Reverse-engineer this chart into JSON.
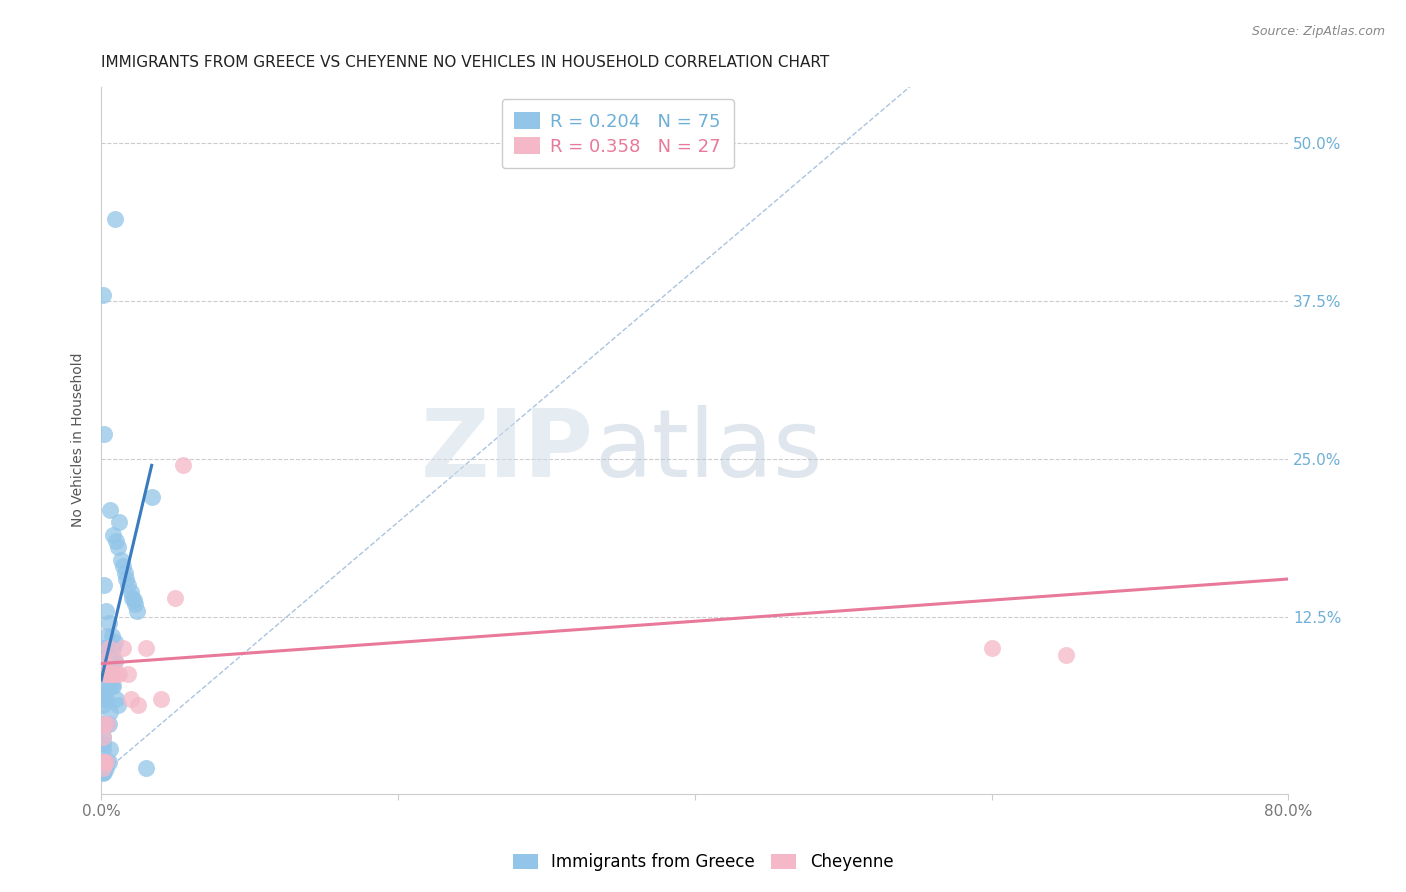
{
  "title": "IMMIGRANTS FROM GREECE VS CHEYENNE NO VEHICLES IN HOUSEHOLD CORRELATION CHART",
  "source": "Source: ZipAtlas.com",
  "ylabel": "No Vehicles in Household",
  "ytick_labels": [
    "50.0%",
    "37.5%",
    "25.0%",
    "12.5%"
  ],
  "ytick_values": [
    0.5,
    0.375,
    0.25,
    0.125
  ],
  "legend_blue_r": "0.204",
  "legend_blue_n": "75",
  "legend_pink_r": "0.358",
  "legend_pink_n": "27",
  "legend_label_blue": "Immigrants from Greece",
  "legend_label_pink": "Cheyenne",
  "xlim": [
    0.0,
    0.8
  ],
  "ylim": [
    -0.015,
    0.545
  ],
  "blue_color": "#92c5e8",
  "pink_color": "#f4b8c8",
  "blue_line_color": "#3a7bbf",
  "pink_line_color": "#e8799a",
  "diag_line_color": "#aac4e0",
  "watermark_zip": "ZIP",
  "watermark_atlas": "atlas",
  "blue_scatter_x": [
    0.001,
    0.001,
    0.001,
    0.001,
    0.001,
    0.001,
    0.001,
    0.001,
    0.001,
    0.001,
    0.001,
    0.001,
    0.001,
    0.001,
    0.001,
    0.001,
    0.002,
    0.002,
    0.002,
    0.002,
    0.002,
    0.002,
    0.002,
    0.002,
    0.002,
    0.003,
    0.003,
    0.003,
    0.003,
    0.003,
    0.003,
    0.003,
    0.004,
    0.004,
    0.004,
    0.004,
    0.004,
    0.005,
    0.005,
    0.005,
    0.005,
    0.005,
    0.006,
    0.006,
    0.006,
    0.006,
    0.007,
    0.007,
    0.007,
    0.008,
    0.008,
    0.008,
    0.009,
    0.009,
    0.01,
    0.01,
    0.011,
    0.011,
    0.012,
    0.013,
    0.015,
    0.016,
    0.017,
    0.018,
    0.02,
    0.021,
    0.022,
    0.023,
    0.024,
    0.03,
    0.034,
    0.001,
    0.002,
    0.006,
    0.009
  ],
  "blue_scatter_y": [
    0.001,
    0.002,
    0.003,
    0.004,
    0.005,
    0.006,
    0.007,
    0.008,
    0.01,
    0.02,
    0.025,
    0.03,
    0.04,
    0.055,
    0.065,
    0.09,
    0.002,
    0.005,
    0.01,
    0.04,
    0.06,
    0.08,
    0.09,
    0.1,
    0.15,
    0.005,
    0.01,
    0.04,
    0.06,
    0.08,
    0.1,
    0.13,
    0.01,
    0.04,
    0.07,
    0.09,
    0.11,
    0.01,
    0.04,
    0.07,
    0.09,
    0.12,
    0.02,
    0.05,
    0.08,
    0.1,
    0.07,
    0.09,
    0.11,
    0.07,
    0.1,
    0.19,
    0.09,
    0.105,
    0.06,
    0.185,
    0.055,
    0.18,
    0.2,
    0.17,
    0.165,
    0.16,
    0.155,
    0.15,
    0.145,
    0.14,
    0.138,
    0.135,
    0.13,
    0.005,
    0.22,
    0.38,
    0.27,
    0.21,
    0.44
  ],
  "pink_scatter_x": [
    0.001,
    0.001,
    0.001,
    0.002,
    0.002,
    0.002,
    0.003,
    0.003,
    0.004,
    0.004,
    0.005,
    0.006,
    0.007,
    0.008,
    0.009,
    0.01,
    0.012,
    0.015,
    0.018,
    0.02,
    0.025,
    0.03,
    0.04,
    0.05,
    0.055,
    0.6,
    0.65
  ],
  "pink_scatter_y": [
    0.005,
    0.01,
    0.03,
    0.01,
    0.04,
    0.09,
    0.01,
    0.08,
    0.04,
    0.08,
    0.1,
    0.08,
    0.08,
    0.08,
    0.09,
    0.08,
    0.08,
    0.1,
    0.08,
    0.06,
    0.055,
    0.1,
    0.06,
    0.14,
    0.245,
    0.1,
    0.095
  ],
  "blue_line_x": [
    0.0,
    0.034
  ],
  "blue_line_y": [
    0.075,
    0.245
  ],
  "pink_line_x": [
    0.0,
    0.8
  ],
  "pink_line_y": [
    0.088,
    0.155
  ],
  "diag_line_x": [
    0.0,
    0.545
  ],
  "diag_line_y": [
    0.0,
    0.545
  ],
  "background_color": "#ffffff",
  "title_fontsize": 11,
  "axis_label_fontsize": 10,
  "tick_fontsize": 11,
  "source_fontsize": 9,
  "legend_fontsize": 13
}
